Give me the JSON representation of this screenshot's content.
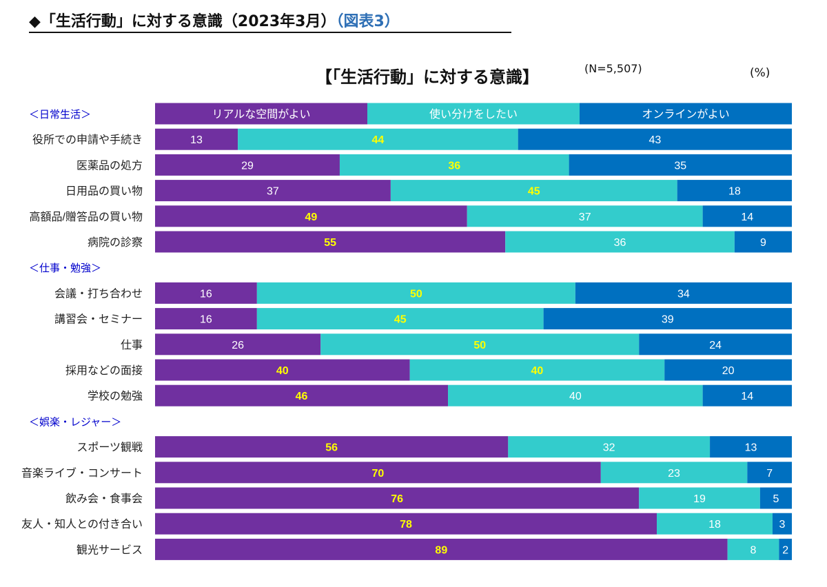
{
  "heading": {
    "text": "◆「生活行動」に対する意識（2023年3月）",
    "ref": "（図表3）"
  },
  "notes": {
    "sample": "(N=5,507)",
    "unit": "(%)"
  },
  "colors": {
    "real": "#7030a0",
    "both": "#33cccc",
    "online": "#0070c0",
    "label_light": "#ffffff",
    "label_highlight": "#ffff00",
    "group_label": "#0000cc"
  },
  "chart_data": {
    "type": "bar",
    "orientation": "horizontal",
    "stacked": "percent",
    "title": "【「生活行動」に対する意識】",
    "xlim": [
      0,
      100
    ],
    "legend_position": "top (header row)",
    "grid": false,
    "series": [
      {
        "name": "リアルな空間がよい",
        "key": "real"
      },
      {
        "name": "使い分けをしたい",
        "key": "both"
      },
      {
        "name": "オンラインがよい",
        "key": "online"
      }
    ],
    "groups": [
      {
        "label": "＜日常生活＞",
        "rows": [
          {
            "category": "役所での申請や手続き",
            "values": [
              13,
              44,
              43
            ],
            "highlight": [
              false,
              true,
              false
            ]
          },
          {
            "category": "医薬品の処方",
            "values": [
              29,
              36,
              35
            ],
            "highlight": [
              false,
              true,
              false
            ]
          },
          {
            "category": "日用品の買い物",
            "values": [
              37,
              45,
              18
            ],
            "highlight": [
              false,
              true,
              false
            ]
          },
          {
            "category": "高額品/贈答品の買い物",
            "values": [
              49,
              37,
              14
            ],
            "highlight": [
              true,
              false,
              false
            ]
          },
          {
            "category": "病院の診察",
            "values": [
              55,
              36,
              9
            ],
            "highlight": [
              true,
              false,
              false
            ]
          }
        ]
      },
      {
        "label": "＜仕事・勉強＞",
        "rows": [
          {
            "category": "会議・打ち合わせ",
            "values": [
              16,
              50,
              34
            ],
            "highlight": [
              false,
              true,
              false
            ]
          },
          {
            "category": "講習会・セミナー",
            "values": [
              16,
              45,
              39
            ],
            "highlight": [
              false,
              true,
              false
            ]
          },
          {
            "category": "仕事",
            "values": [
              26,
              50,
              24
            ],
            "highlight": [
              false,
              true,
              false
            ]
          },
          {
            "category": "採用などの面接",
            "values": [
              40,
              40,
              20
            ],
            "highlight": [
              true,
              true,
              false
            ]
          },
          {
            "category": "学校の勉強",
            "values": [
              46,
              40,
              14
            ],
            "highlight": [
              true,
              false,
              false
            ]
          }
        ]
      },
      {
        "label": "＜娯楽・レジャー＞",
        "rows": [
          {
            "category": "スポーツ観戦",
            "values": [
              56,
              32,
              13
            ],
            "highlight": [
              true,
              false,
              false
            ]
          },
          {
            "category": "音楽ライブ・コンサート",
            "values": [
              70,
              23,
              7
            ],
            "highlight": [
              true,
              false,
              false
            ]
          },
          {
            "category": "飲み会・食事会",
            "values": [
              76,
              19,
              5
            ],
            "highlight": [
              true,
              false,
              false
            ]
          },
          {
            "category": "友人・知人との付き合い",
            "values": [
              78,
              18,
              3
            ],
            "highlight": [
              true,
              false,
              false
            ]
          },
          {
            "category": "観光サービス",
            "values": [
              89,
              8,
              2
            ],
            "highlight": [
              true,
              false,
              false
            ]
          }
        ]
      }
    ]
  }
}
